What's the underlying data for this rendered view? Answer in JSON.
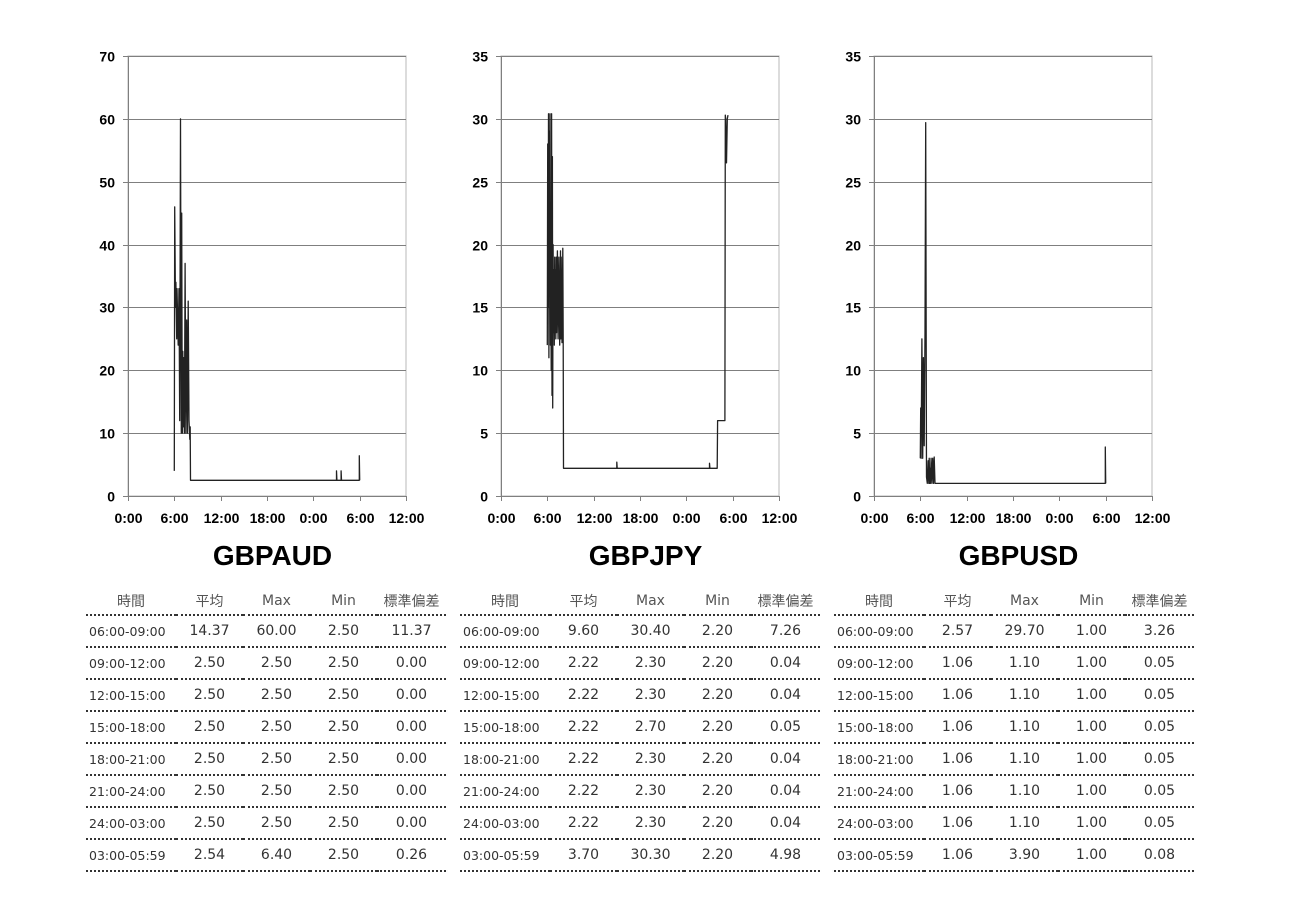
{
  "chart_data": [
    {
      "type": "line",
      "title": "GBPAUD",
      "x_unit": "hours",
      "xlim": [
        0,
        36
      ],
      "ylim": [
        0,
        70
      ],
      "yticks": [
        0,
        10,
        20,
        30,
        40,
        50,
        60,
        70
      ],
      "xtick_labels": [
        "0:00",
        "6:00",
        "12:00",
        "18:00",
        "0:00",
        "6:00",
        "12:00"
      ],
      "grid": true,
      "series": [
        {
          "x": [
            6.0,
            6.05,
            6.15,
            6.2,
            6.3,
            6.35,
            6.5,
            6.6,
            6.7,
            6.8,
            6.9,
            6.95,
            7.0,
            7.05,
            7.1,
            7.15,
            7.2,
            7.3,
            7.4,
            7.5,
            7.6,
            7.7,
            7.8,
            7.9,
            8.0,
            8.05,
            8.1,
            8.15,
            8.2,
            8.3,
            8.4,
            8.5,
            8.6,
            8.7,
            8.8,
            8.9,
            9.0,
            27.0,
            27.0,
            27.05,
            27.1,
            27.6,
            27.6,
            27.65,
            27.7,
            29.95,
            29.95,
            30.0
          ],
          "y": [
            4.0,
            46.0,
            30.0,
            34.0,
            25.0,
            33.0,
            24.0,
            33.0,
            12.0,
            60.0,
            10.0,
            45.0,
            20.0,
            10.0,
            23.0,
            11.0,
            22.0,
            10.0,
            37.0,
            10.0,
            28.0,
            10.0,
            31.0,
            12.0,
            9.0,
            11.0,
            2.5,
            2.5,
            2.5,
            2.5,
            2.5,
            2.5,
            2.5,
            2.5,
            2.5,
            2.5,
            2.5,
            2.5,
            4.0,
            2.5,
            2.5,
            2.5,
            4.0,
            2.5,
            2.5,
            2.5,
            6.4,
            2.5
          ]
        }
      ]
    },
    {
      "type": "line",
      "title": "GBPJPY",
      "x_unit": "hours",
      "xlim": [
        0,
        36
      ],
      "ylim": [
        0,
        35
      ],
      "yticks": [
        0,
        5,
        10,
        15,
        20,
        25,
        30,
        35
      ],
      "xtick_labels": [
        "0:00",
        "6:00",
        "12:00",
        "18:00",
        "0:00",
        "6:00",
        "12:00"
      ],
      "grid": true,
      "series": [
        {
          "x": [
            6.0,
            6.05,
            6.1,
            6.15,
            6.2,
            6.25,
            6.3,
            6.35,
            6.4,
            6.45,
            6.5,
            6.55,
            6.6,
            6.65,
            6.7,
            6.75,
            6.8,
            6.85,
            6.9,
            6.95,
            7.0,
            7.05,
            7.1,
            7.15,
            7.2,
            7.3,
            7.4,
            7.5,
            7.6,
            7.7,
            7.75,
            7.8,
            7.9,
            8.0,
            8.05,
            8.1,
            8.15,
            8.2,
            8.25,
            8.3,
            9.0,
            15.0,
            15.0,
            15.05,
            15.1,
            27.0,
            27.0,
            27.05,
            27.1,
            28.0,
            28.05,
            28.1,
            28.5,
            29.0,
            29.05,
            29.1,
            29.2,
            29.3,
            29.4
          ],
          "y": [
            12.0,
            28.0,
            15.0,
            30.4,
            11.0,
            29.0,
            22.0,
            30.4,
            12.0,
            18.0,
            10.0,
            30.4,
            8.0,
            27.0,
            7.0,
            20.0,
            13.0,
            18.0,
            12.0,
            19.0,
            13.0,
            18.0,
            12.5,
            19.0,
            13.0,
            19.5,
            12.5,
            19.0,
            12.0,
            19.5,
            12.5,
            19.0,
            12.2,
            19.7,
            12.3,
            2.2,
            2.2,
            2.2,
            2.2,
            2.2,
            2.2,
            2.2,
            2.7,
            2.2,
            2.2,
            2.2,
            2.6,
            2.2,
            2.2,
            2.2,
            6.0,
            6.0,
            6.0,
            6.0,
            30.3,
            30.0,
            26.5,
            30.0,
            30.3
          ]
        }
      ]
    },
    {
      "type": "line",
      "title": "GBPUSD",
      "x_unit": "hours",
      "xlim": [
        0,
        36
      ],
      "ylim": [
        0,
        35
      ],
      "yticks": [
        0,
        5,
        10,
        15,
        20,
        25,
        30,
        35
      ],
      "xtick_labels": [
        "0:00",
        "6:00",
        "12:00",
        "18:00",
        "0:00",
        "6:00",
        "12:00"
      ],
      "grid": true,
      "series": [
        {
          "x": [
            6.0,
            6.05,
            6.1,
            6.2,
            6.3,
            6.4,
            6.5,
            6.6,
            6.7,
            6.8,
            6.9,
            7.0,
            7.1,
            7.15,
            7.2,
            7.25,
            7.3,
            7.4,
            7.5,
            7.6,
            7.7,
            7.8,
            7.9,
            8.0,
            8.05,
            8.1,
            8.2,
            8.3,
            8.4,
            9.0,
            29.95,
            29.95,
            30.0
          ],
          "y": [
            3.0,
            7.0,
            3.0,
            12.5,
            3.0,
            11.0,
            4.0,
            13.0,
            29.7,
            1.5,
            1.0,
            2.8,
            1.0,
            3.0,
            1.0,
            2.2,
            1.0,
            3.0,
            1.0,
            3.0,
            1.0,
            3.1,
            1.0,
            1.0,
            1.0,
            1.0,
            1.0,
            1.0,
            1.0,
            1.0,
            1.0,
            3.9,
            1.0
          ]
        }
      ]
    }
  ],
  "tables": [
    {
      "headers": [
        "時間",
        "平均",
        "Max",
        "Min",
        "標準偏差"
      ],
      "rows": [
        [
          "06:00-09:00",
          "14.37",
          "60.00",
          "2.50",
          "11.37"
        ],
        [
          "09:00-12:00",
          "2.50",
          "2.50",
          "2.50",
          "0.00"
        ],
        [
          "12:00-15:00",
          "2.50",
          "2.50",
          "2.50",
          "0.00"
        ],
        [
          "15:00-18:00",
          "2.50",
          "2.50",
          "2.50",
          "0.00"
        ],
        [
          "18:00-21:00",
          "2.50",
          "2.50",
          "2.50",
          "0.00"
        ],
        [
          "21:00-24:00",
          "2.50",
          "2.50",
          "2.50",
          "0.00"
        ],
        [
          "24:00-03:00",
          "2.50",
          "2.50",
          "2.50",
          "0.00"
        ],
        [
          "03:00-05:59",
          "2.54",
          "6.40",
          "2.50",
          "0.26"
        ]
      ]
    },
    {
      "headers": [
        "時間",
        "平均",
        "Max",
        "Min",
        "標準偏差"
      ],
      "rows": [
        [
          "06:00-09:00",
          "9.60",
          "30.40",
          "2.20",
          "7.26"
        ],
        [
          "09:00-12:00",
          "2.22",
          "2.30",
          "2.20",
          "0.04"
        ],
        [
          "12:00-15:00",
          "2.22",
          "2.30",
          "2.20",
          "0.04"
        ],
        [
          "15:00-18:00",
          "2.22",
          "2.70",
          "2.20",
          "0.05"
        ],
        [
          "18:00-21:00",
          "2.22",
          "2.30",
          "2.20",
          "0.04"
        ],
        [
          "21:00-24:00",
          "2.22",
          "2.30",
          "2.20",
          "0.04"
        ],
        [
          "24:00-03:00",
          "2.22",
          "2.30",
          "2.20",
          "0.04"
        ],
        [
          "03:00-05:59",
          "3.70",
          "30.30",
          "2.20",
          "4.98"
        ]
      ]
    },
    {
      "headers": [
        "時間",
        "平均",
        "Max",
        "Min",
        "標準偏差"
      ],
      "rows": [
        [
          "06:00-09:00",
          "2.57",
          "29.70",
          "1.00",
          "3.26"
        ],
        [
          "09:00-12:00",
          "1.06",
          "1.10",
          "1.00",
          "0.05"
        ],
        [
          "12:00-15:00",
          "1.06",
          "1.10",
          "1.00",
          "0.05"
        ],
        [
          "15:00-18:00",
          "1.06",
          "1.10",
          "1.00",
          "0.05"
        ],
        [
          "18:00-21:00",
          "1.06",
          "1.10",
          "1.00",
          "0.05"
        ],
        [
          "21:00-24:00",
          "1.06",
          "1.10",
          "1.00",
          "0.05"
        ],
        [
          "24:00-03:00",
          "1.06",
          "1.10",
          "1.00",
          "0.05"
        ],
        [
          "03:00-05:59",
          "1.06",
          "3.90",
          "1.00",
          "0.08"
        ]
      ]
    }
  ]
}
